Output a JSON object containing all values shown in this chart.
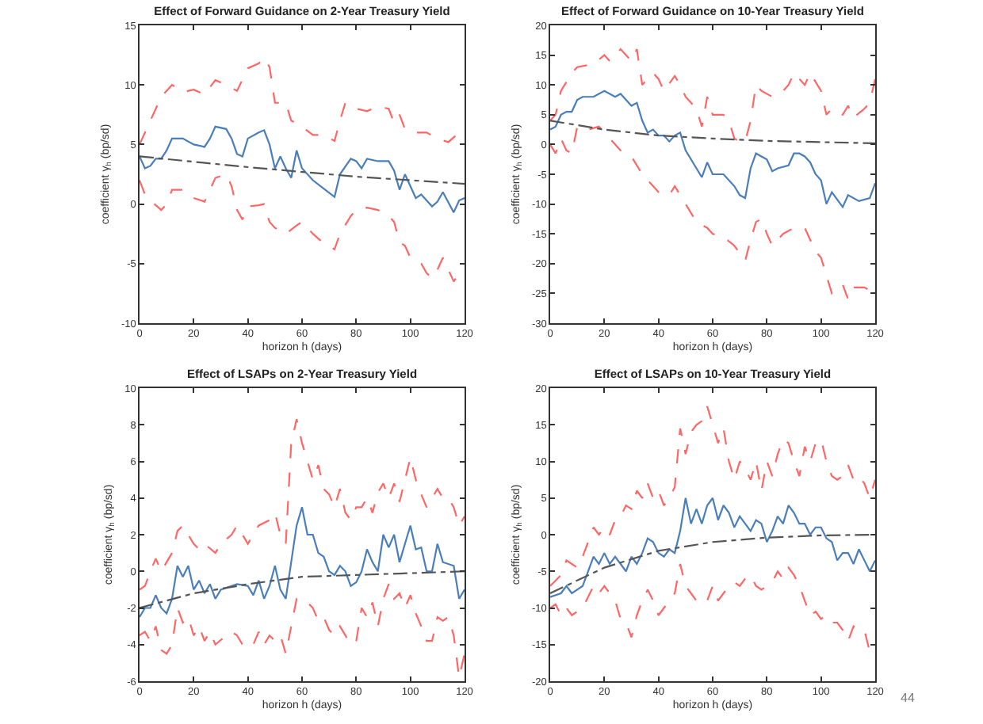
{
  "chart_data": [
    {
      "type": "line",
      "title": "Effect of Forward Guidance on 2-Year Treasury Yield",
      "xlabel": "horizon h (days)",
      "ylabel": "coefficient γ$_{h}$ (bp/sd)",
      "xlim": [
        0,
        120
      ],
      "xticks": [
        0,
        20,
        40,
        60,
        80,
        100,
        120
      ],
      "ylim": [
        -10,
        15
      ],
      "yticks": [
        -10,
        -5,
        0,
        5,
        10,
        15
      ],
      "grid": false,
      "marker": "none",
      "series": [
        {
          "color": "#ff6666",
          "line_style": "dashed",
          "x": [
            0,
            4,
            8,
            12,
            16,
            20,
            24,
            28,
            32,
            36,
            40,
            44,
            46,
            48,
            50,
            54,
            56,
            60,
            64,
            68,
            72,
            74,
            76,
            80,
            84,
            88,
            92,
            94,
            96,
            98,
            102,
            106,
            110,
            114,
            118,
            120
          ],
          "values": [
            5,
            7,
            9,
            10,
            9.4,
            9.6,
            9.2,
            10.4,
            10,
            9.5,
            11.4,
            11.8,
            12.3,
            11.5,
            8.5,
            8.5,
            7,
            6.5,
            5.8,
            5.8,
            5.3,
            7,
            8.5,
            8,
            7.8,
            8.2,
            8,
            6.8,
            7.5,
            6.3,
            6,
            6,
            5.5,
            5.2,
            6,
            6.3
          ]
        },
        {
          "color": "#ff6666",
          "line_style": "dashed",
          "x": [
            0,
            2,
            4,
            8,
            10,
            12,
            16,
            20,
            24,
            26,
            28,
            32,
            34,
            36,
            38,
            40,
            44,
            46,
            48,
            50,
            54,
            58,
            60,
            64,
            68,
            72,
            74,
            78,
            80,
            84,
            88,
            92,
            94,
            96,
            98,
            100,
            104,
            106,
            108,
            110,
            112,
            116,
            118,
            120
          ],
          "values": [
            2,
            0.8,
            0.3,
            -0.5,
            0,
            1.2,
            1.2,
            0.5,
            0.2,
            1.2,
            2.2,
            2.5,
            1.5,
            -0.5,
            -1.3,
            -0.2,
            -0.1,
            0,
            -1.5,
            -2,
            -2.5,
            -1.8,
            -1.5,
            -2.5,
            -3.3,
            -3.8,
            -2.5,
            -1,
            -0.5,
            -0.3,
            -0.5,
            -1,
            -1.5,
            -3.2,
            -3.5,
            -4.5,
            -5,
            -5.8,
            -6.2,
            -5.5,
            -4.5,
            -6.5,
            -5.8,
            -5.5
          ]
        },
        {
          "color": "#4a7ebb",
          "line_style": "solid",
          "x": [
            0,
            2,
            4,
            6,
            8,
            10,
            12,
            16,
            20,
            24,
            26,
            28,
            32,
            34,
            36,
            38,
            40,
            44,
            46,
            48,
            50,
            52,
            54,
            56,
            58,
            60,
            64,
            68,
            72,
            74,
            78,
            80,
            82,
            84,
            88,
            92,
            94,
            96,
            98,
            100,
            102,
            104,
            108,
            110,
            112,
            116,
            118,
            120
          ],
          "values": [
            4,
            3,
            3.2,
            3.8,
            3.8,
            4.5,
            5.5,
            5.5,
            5,
            4.8,
            5.5,
            6.5,
            6.3,
            5.5,
            4.2,
            4,
            5.5,
            6,
            6.2,
            5,
            3,
            4,
            3,
            2.2,
            4.5,
            3,
            2,
            1.3,
            0.6,
            2.5,
            3.8,
            3.6,
            3,
            3.8,
            3.6,
            3.6,
            2.8,
            1.2,
            2.5,
            1.5,
            0.5,
            0.8,
            -0.2,
            0.2,
            1,
            -0.7,
            0.3,
            0.5
          ]
        },
        {
          "color": "#555555",
          "line_style": "dashdot",
          "x": [
            0,
            40,
            80,
            120
          ],
          "values": [
            4,
            3.1,
            2.3,
            1.7
          ]
        }
      ]
    },
    {
      "type": "line",
      "title": "Effect of Forward Guidance on 10-Year Treasury Yield",
      "xlabel": "horizon h (days)",
      "ylabel": "coefficient γ$_{h}$ (bp/sd)",
      "xlim": [
        0,
        120
      ],
      "xticks": [
        0,
        20,
        40,
        60,
        80,
        100,
        120
      ],
      "ylim": [
        -30,
        20
      ],
      "yticks": [
        -30,
        -25,
        -20,
        -15,
        -10,
        -5,
        0,
        5,
        10,
        15,
        20
      ],
      "grid": false,
      "marker": "none",
      "series": [
        {
          "color": "#ff6666",
          "line_style": "dashed",
          "x": [
            0,
            2,
            4,
            8,
            10,
            16,
            20,
            22,
            26,
            30,
            32,
            34,
            38,
            40,
            42,
            46,
            48,
            50,
            54,
            56,
            58,
            60,
            64,
            66,
            68,
            70,
            72,
            74,
            76,
            78,
            82,
            86,
            88,
            90,
            94,
            96,
            100,
            102,
            104,
            108,
            110,
            112,
            116,
            118,
            120
          ],
          "values": [
            4,
            5,
            9,
            12,
            13,
            13.5,
            15,
            14,
            16,
            14,
            16,
            10,
            12,
            11,
            9,
            11.5,
            10,
            8,
            6,
            3,
            8,
            5,
            5,
            4,
            1,
            0.5,
            0.5,
            4,
            10,
            9,
            8,
            9,
            10,
            12,
            10,
            12,
            9,
            5,
            6,
            5,
            6.5,
            4.5,
            6,
            7,
            11
          ]
        },
        {
          "color": "#ff6666",
          "line_style": "dashed",
          "x": [
            0,
            2,
            4,
            6,
            8,
            10,
            14,
            18,
            22,
            26,
            30,
            34,
            38,
            40,
            44,
            46,
            50,
            54,
            58,
            60,
            64,
            68,
            72,
            74,
            76,
            78,
            80,
            82,
            86,
            90,
            94,
            98,
            100,
            102,
            104,
            108,
            110,
            112,
            116,
            120
          ],
          "values": [
            0,
            -1.5,
            1,
            -1,
            -1.5,
            3,
            2.5,
            3,
            1,
            -1,
            -2,
            -5,
            -7,
            -8,
            -8.5,
            -7,
            -10,
            -13,
            -14,
            -15,
            -15.5,
            -17,
            -19.5,
            -16,
            -13,
            -12.5,
            -15,
            -17,
            -15,
            -14,
            -14,
            -18,
            -19,
            -22,
            -25,
            -23.5,
            -26,
            -24,
            -24,
            -25
          ]
        },
        {
          "color": "#4a7ebb",
          "line_style": "solid",
          "x": [
            0,
            2,
            4,
            6,
            8,
            10,
            12,
            16,
            20,
            24,
            26,
            28,
            30,
            32,
            34,
            36,
            38,
            40,
            42,
            44,
            46,
            48,
            50,
            54,
            56,
            58,
            60,
            64,
            68,
            70,
            72,
            74,
            76,
            80,
            82,
            84,
            88,
            90,
            92,
            94,
            96,
            98,
            100,
            102,
            104,
            108,
            110,
            114,
            118,
            120
          ],
          "values": [
            2.5,
            3,
            5,
            5.5,
            5.5,
            7.5,
            8,
            8,
            9,
            8,
            8.5,
            7.5,
            6.5,
            7,
            4,
            2,
            2.5,
            1.5,
            1.5,
            0.5,
            1.5,
            2,
            -1,
            -4,
            -5.5,
            -3,
            -5,
            -5,
            -7,
            -8.5,
            -9,
            -4,
            -1.5,
            -2.5,
            -4.5,
            -4,
            -3.5,
            -1.5,
            -1.5,
            -2,
            -3,
            -5,
            -6,
            -10,
            -8,
            -10.5,
            -8.5,
            -9.5,
            -9,
            -6.5
          ]
        },
        {
          "color": "#555555",
          "line_style": "dashdot",
          "x": [
            0,
            20,
            40,
            60,
            80,
            120
          ],
          "values": [
            4,
            2.5,
            1.5,
            1,
            0.6,
            0.2
          ]
        }
      ]
    },
    {
      "type": "line",
      "title": "Effect of LSAPs on 2-Year Treasury Yield",
      "xlabel": "horizon h (days)",
      "ylabel": "coefficient γ$_{h}$ (bp/sd)",
      "xlim": [
        0,
        120
      ],
      "xticks": [
        0,
        20,
        40,
        60,
        80,
        100,
        120
      ],
      "ylim": [
        -6,
        10
      ],
      "yticks": [
        -6,
        -4,
        -2,
        0,
        2,
        4,
        6,
        8,
        10
      ],
      "grid": false,
      "marker": "none",
      "series": [
        {
          "color": "#ff6666",
          "line_style": "dashed",
          "x": [
            0,
            2,
            4,
            6,
            8,
            12,
            14,
            16,
            18,
            20,
            22,
            24,
            28,
            30,
            34,
            36,
            40,
            42,
            44,
            48,
            50,
            52,
            54,
            56,
            58,
            60,
            62,
            64,
            66,
            68,
            70,
            72,
            74,
            76,
            78,
            80,
            82,
            84,
            86,
            88,
            90,
            92,
            94,
            96,
            98,
            100,
            102,
            104,
            106,
            108,
            110,
            112,
            114,
            116,
            118,
            120
          ],
          "values": [
            -1,
            -0.8,
            0,
            0.7,
            0,
            1,
            2.2,
            2.5,
            2,
            1.5,
            1.2,
            1.5,
            1,
            1.5,
            2,
            2.5,
            1.5,
            2,
            2.5,
            2.8,
            3.2,
            2,
            1.5,
            7,
            8.3,
            7,
            6,
            5,
            5.8,
            4.5,
            4.2,
            3.5,
            4.5,
            3.2,
            2.8,
            3.5,
            3.5,
            4,
            3.2,
            4.3,
            4.8,
            4,
            4.8,
            3.8,
            5,
            6.2,
            5,
            4.2,
            3.5,
            4,
            4.5,
            4,
            4,
            3.5,
            2.5,
            3
          ]
        },
        {
          "color": "#ff6666",
          "line_style": "dashed",
          "x": [
            0,
            2,
            4,
            6,
            8,
            10,
            12,
            14,
            16,
            18,
            20,
            22,
            24,
            26,
            28,
            32,
            34,
            36,
            38,
            40,
            42,
            44,
            46,
            48,
            50,
            52,
            54,
            56,
            58,
            60,
            62,
            64,
            66,
            68,
            70,
            72,
            74,
            76,
            78,
            80,
            82,
            84,
            86,
            88,
            90,
            92,
            94,
            96,
            98,
            100,
            102,
            104,
            106,
            108,
            110,
            112,
            114,
            116,
            118,
            120
          ],
          "values": [
            -3.5,
            -3.3,
            -3.8,
            -3,
            -4.3,
            -4.5,
            -4,
            -2,
            -2.8,
            -2.5,
            -3.5,
            -3,
            -3.8,
            -3.3,
            -4,
            -3.5,
            -3.3,
            -3.5,
            -4,
            -4.2,
            -4,
            -3.3,
            -4,
            -3.5,
            -3.8,
            -3.5,
            -4.5,
            -3,
            -1.5,
            -1.5,
            -1.7,
            -2,
            -2.7,
            -2.5,
            -3.2,
            -3.5,
            -3,
            -3.5,
            -4,
            -3.8,
            -2,
            -2.5,
            -1.7,
            -3,
            -1.5,
            -0.7,
            -1.5,
            -1.2,
            -2,
            -1.3,
            -2.3,
            -3,
            -3.8,
            -3.8,
            -2.5,
            -2.7,
            -2.5,
            -3.5,
            -5.8,
            -4.5
          ]
        },
        {
          "color": "#4a7ebb",
          "line_style": "solid",
          "x": [
            0,
            2,
            4,
            6,
            8,
            10,
            12,
            14,
            16,
            18,
            20,
            22,
            24,
            26,
            28,
            30,
            34,
            36,
            40,
            42,
            44,
            46,
            48,
            50,
            52,
            54,
            56,
            58,
            60,
            62,
            64,
            66,
            68,
            70,
            72,
            74,
            76,
            78,
            80,
            82,
            84,
            86,
            88,
            90,
            92,
            94,
            96,
            98,
            100,
            102,
            104,
            106,
            108,
            110,
            112,
            116,
            118,
            120
          ],
          "values": [
            -2.5,
            -2,
            -2,
            -1.3,
            -2,
            -2.3,
            -1.5,
            0.3,
            -0.3,
            0.3,
            -1,
            -0.5,
            -1.2,
            -0.7,
            -1.5,
            -1,
            -0.8,
            -0.7,
            -0.8,
            -1.3,
            -0.5,
            -1.5,
            -0.8,
            0.3,
            -1,
            -1.5,
            0.5,
            2.5,
            3.5,
            2,
            2,
            1,
            0.8,
            0,
            -0.2,
            0.3,
            0,
            -0.8,
            -0.6,
            0,
            1.2,
            0.5,
            0,
            2,
            1.3,
            2,
            0.5,
            1.5,
            2.5,
            1.2,
            1.3,
            0,
            0,
            1.5,
            0.5,
            0.3,
            -1.5,
            -1
          ]
        },
        {
          "color": "#555555",
          "line_style": "dashdot",
          "x": [
            0,
            20,
            40,
            60,
            80,
            100,
            120
          ],
          "values": [
            -2,
            -1.2,
            -0.7,
            -0.3,
            -0.2,
            -0.1,
            0
          ]
        }
      ]
    },
    {
      "type": "line",
      "title": "Effect of LSAPs on 10-Year Treasury Yield",
      "xlabel": "horizon h (days)",
      "ylabel": "coefficient γ$_{h}$ (bp/sd)",
      "xlim": [
        0,
        120
      ],
      "xticks": [
        0,
        20,
        40,
        60,
        80,
        100,
        120
      ],
      "ylim": [
        -20,
        20
      ],
      "yticks": [
        -20,
        -15,
        -10,
        -5,
        0,
        5,
        10,
        15,
        20
      ],
      "grid": false,
      "marker": "none",
      "annotations": [
        "44"
      ],
      "series": [
        {
          "color": "#ff6666",
          "line_style": "dashed",
          "x": [
            0,
            4,
            6,
            8,
            10,
            12,
            14,
            16,
            18,
            20,
            22,
            24,
            26,
            28,
            30,
            32,
            34,
            36,
            38,
            40,
            42,
            44,
            46,
            48,
            50,
            52,
            54,
            56,
            58,
            60,
            62,
            64,
            66,
            68,
            70,
            72,
            74,
            76,
            78,
            80,
            82,
            84,
            86,
            88,
            90,
            92,
            94,
            96,
            98,
            100,
            102,
            104,
            106,
            108,
            110,
            112,
            114,
            116,
            118,
            120
          ],
          "values": [
            -7,
            -5.5,
            -3.5,
            -4,
            -4.5,
            -3,
            -1,
            1,
            0,
            1,
            0,
            2,
            2.5,
            4,
            3.5,
            6,
            5,
            7,
            5,
            6,
            4,
            5,
            6.5,
            14.5,
            11,
            14,
            15,
            15.5,
            17.5,
            15,
            12.5,
            14.5,
            10,
            7.5,
            10,
            9,
            7.5,
            10,
            6,
            10,
            8,
            11,
            13,
            12.5,
            10,
            8,
            12,
            10,
            12.5,
            13,
            10,
            8,
            7.5,
            8,
            9.5,
            7.5,
            8,
            7,
            5,
            7.5
          ]
        },
        {
          "color": "#ff6666",
          "line_style": "dashed",
          "x": [
            0,
            2,
            4,
            6,
            8,
            10,
            12,
            14,
            16,
            18,
            20,
            22,
            24,
            26,
            28,
            30,
            32,
            34,
            36,
            38,
            40,
            42,
            44,
            46,
            48,
            50,
            52,
            54,
            56,
            58,
            60,
            62,
            64,
            66,
            68,
            70,
            72,
            74,
            76,
            78,
            80,
            82,
            84,
            86,
            88,
            90,
            92,
            94,
            96,
            98,
            100,
            102,
            104,
            106,
            108,
            110,
            112,
            114,
            116,
            118,
            120
          ],
          "values": [
            -10,
            -9.5,
            -11,
            -10,
            -11,
            -10.5,
            -10,
            -8.5,
            -7,
            -8,
            -7,
            -8,
            -9,
            -11.5,
            -12,
            -14,
            -11,
            -9,
            -7.5,
            -9,
            -11,
            -10,
            -9,
            -8,
            -4,
            -7,
            -8,
            -9,
            -8.5,
            -9,
            -7,
            -9,
            -8,
            -7,
            -6.5,
            -7,
            -6,
            -5.5,
            -7,
            -7.5,
            -7,
            -6.5,
            -5,
            -6,
            -4.5,
            -5.5,
            -7,
            -9,
            -11,
            -10.5,
            -11.5,
            -11,
            -12,
            -12,
            -13,
            -14.5,
            -12.5,
            -13,
            -13,
            -16,
            -15
          ]
        },
        {
          "color": "#4a7ebb",
          "line_style": "solid",
          "x": [
            0,
            4,
            6,
            8,
            10,
            12,
            14,
            16,
            18,
            20,
            22,
            24,
            26,
            28,
            30,
            32,
            34,
            36,
            38,
            40,
            42,
            44,
            46,
            48,
            50,
            52,
            54,
            56,
            58,
            60,
            62,
            64,
            66,
            68,
            70,
            72,
            74,
            76,
            78,
            80,
            82,
            84,
            86,
            88,
            90,
            92,
            94,
            96,
            98,
            100,
            102,
            104,
            106,
            108,
            110,
            112,
            114,
            116,
            118,
            120
          ],
          "values": [
            -8.5,
            -8,
            -7,
            -8,
            -7.5,
            -7,
            -5,
            -3,
            -4,
            -2.5,
            -4,
            -3,
            -4,
            -5,
            -3,
            -4,
            -2.5,
            -0.5,
            -1,
            -2.5,
            -3,
            -2,
            -2.5,
            0.5,
            5,
            1.5,
            3.5,
            1.5,
            4,
            5,
            2,
            4,
            3,
            1,
            2.5,
            1.5,
            0.5,
            2,
            1.5,
            -1,
            0.5,
            2.5,
            1.5,
            4,
            3,
            1.5,
            1.5,
            0,
            1,
            1,
            -0.5,
            -1,
            -3.5,
            -2.5,
            -2.5,
            -4,
            -2,
            -3.5,
            -5,
            -3.5
          ]
        },
        {
          "color": "#555555",
          "line_style": "dashdot",
          "x": [
            0,
            20,
            40,
            60,
            80,
            100,
            120
          ],
          "values": [
            -8,
            -4.5,
            -2.2,
            -1,
            -0.4,
            -0.1,
            0
          ]
        }
      ]
    }
  ]
}
